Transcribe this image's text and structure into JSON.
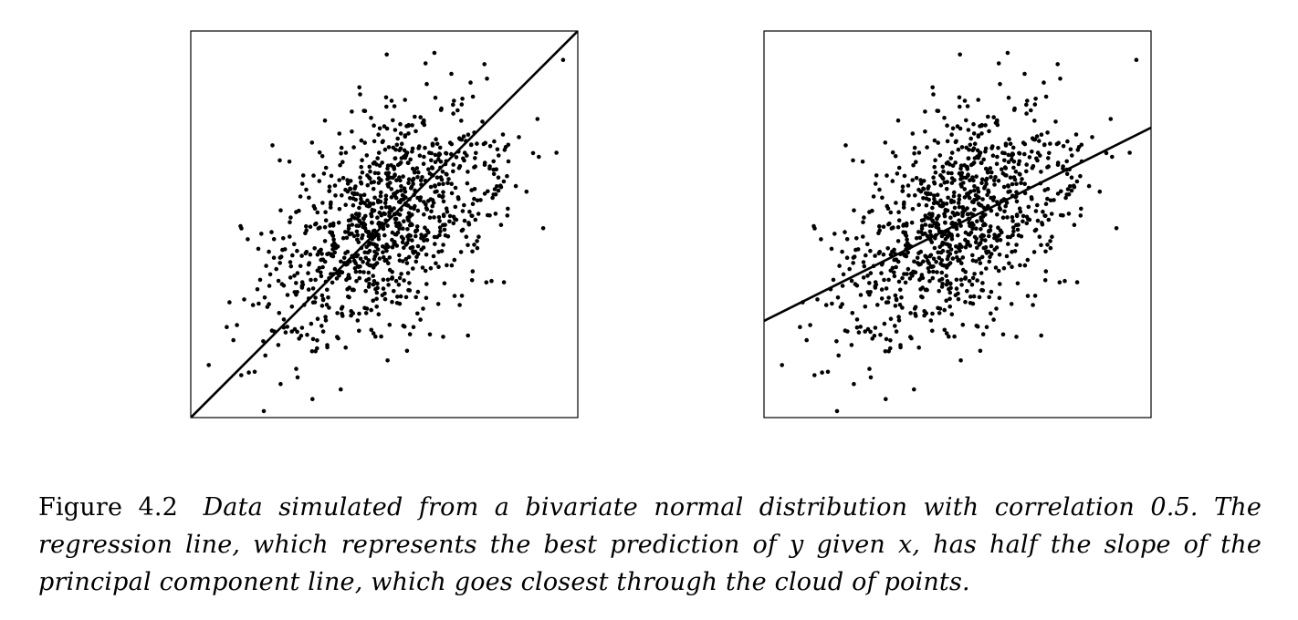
{
  "figure": {
    "label": "Figure 4.2",
    "caption": "Data simulated from a bivariate normal distribution with correlation 0.5. The regression line, which represents the best prediction of y given x, has half the slope of the principal component line, which goes closest through the cloud of points."
  },
  "chart_data": [
    {
      "type": "scatter",
      "title": "",
      "xlabel": "",
      "ylabel": "",
      "axes": "none",
      "grid": false,
      "xlim": [
        -3.3,
        3.3
      ],
      "ylim": [
        -3.3,
        3.3
      ],
      "n_points": 1000,
      "correlation": 0.5,
      "series": [
        {
          "kind": "points",
          "color": "#000000"
        },
        {
          "kind": "line",
          "slope": 1.0,
          "intercept": 0,
          "color": "#000000"
        }
      ]
    },
    {
      "type": "scatter",
      "title": "",
      "xlabel": "",
      "ylabel": "",
      "axes": "none",
      "grid": false,
      "xlim": [
        -3.3,
        3.3
      ],
      "ylim": [
        -3.3,
        3.3
      ],
      "n_points": 1000,
      "correlation": 0.5,
      "series": [
        {
          "kind": "points",
          "color": "#000000"
        },
        {
          "kind": "line",
          "slope": 0.5,
          "intercept": 0,
          "color": "#000000"
        }
      ]
    }
  ]
}
